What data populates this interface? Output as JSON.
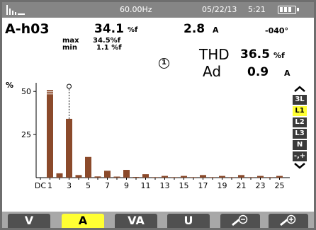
{
  "status": {
    "frequency": "60.00Hz",
    "date": "05/22/13",
    "time": "5:21"
  },
  "reading": {
    "harmonic": "A-h03",
    "percent_value": "34.1",
    "percent_unit": "%f",
    "max_label": "max",
    "max_value": "34.5%f",
    "min_label": "min",
    "min_value": "1.1 %f",
    "rms_value": "2.8",
    "rms_unit": "A",
    "phase_value": "-040°",
    "cursor_marker": "1",
    "thd_label": "THD",
    "thd_value": "36.5",
    "thd_unit": "%f",
    "ad_label": "Ad",
    "ad_value": "0.9",
    "ad_unit": "A"
  },
  "chart_data": {
    "type": "bar",
    "ylabel": "%",
    "ylim": [
      0,
      55
    ],
    "yticks": [
      "50",
      "25"
    ],
    "ytick_values": [
      50,
      25
    ],
    "categories": [
      "DC",
      "1",
      "2",
      "3",
      "4",
      "5",
      "6",
      "7",
      "8",
      "9",
      "10",
      "11",
      "12",
      "13",
      "14",
      "15",
      "16",
      "17",
      "18",
      "19",
      "20",
      "21",
      "22",
      "23",
      "24",
      "25"
    ],
    "xtick_labels": [
      "DC",
      "1",
      "3",
      "5",
      "7",
      "9",
      "11",
      "13",
      "15",
      "17",
      "19",
      "21",
      "23",
      "25"
    ],
    "values": [
      0,
      51,
      2.5,
      34.1,
      1.5,
      12,
      0.7,
      4,
      0.6,
      4.5,
      0.4,
      2,
      0.3,
      1,
      0.3,
      1,
      0.3,
      1.5,
      0.3,
      1,
      0.3,
      1.5,
      0.3,
      1,
      0.3,
      1
    ],
    "selected": "3",
    "bar_color": "#8b4a2b"
  },
  "phase_selector": {
    "items": [
      "3L",
      "L1",
      "L2",
      "L3",
      "N",
      "-,+"
    ],
    "active": "L1"
  },
  "softkeys": {
    "v": "V",
    "a": "A",
    "va": "VA",
    "u": "U",
    "zoom_out": "zoom-out-icon",
    "zoom_in": "zoom-in-icon"
  }
}
